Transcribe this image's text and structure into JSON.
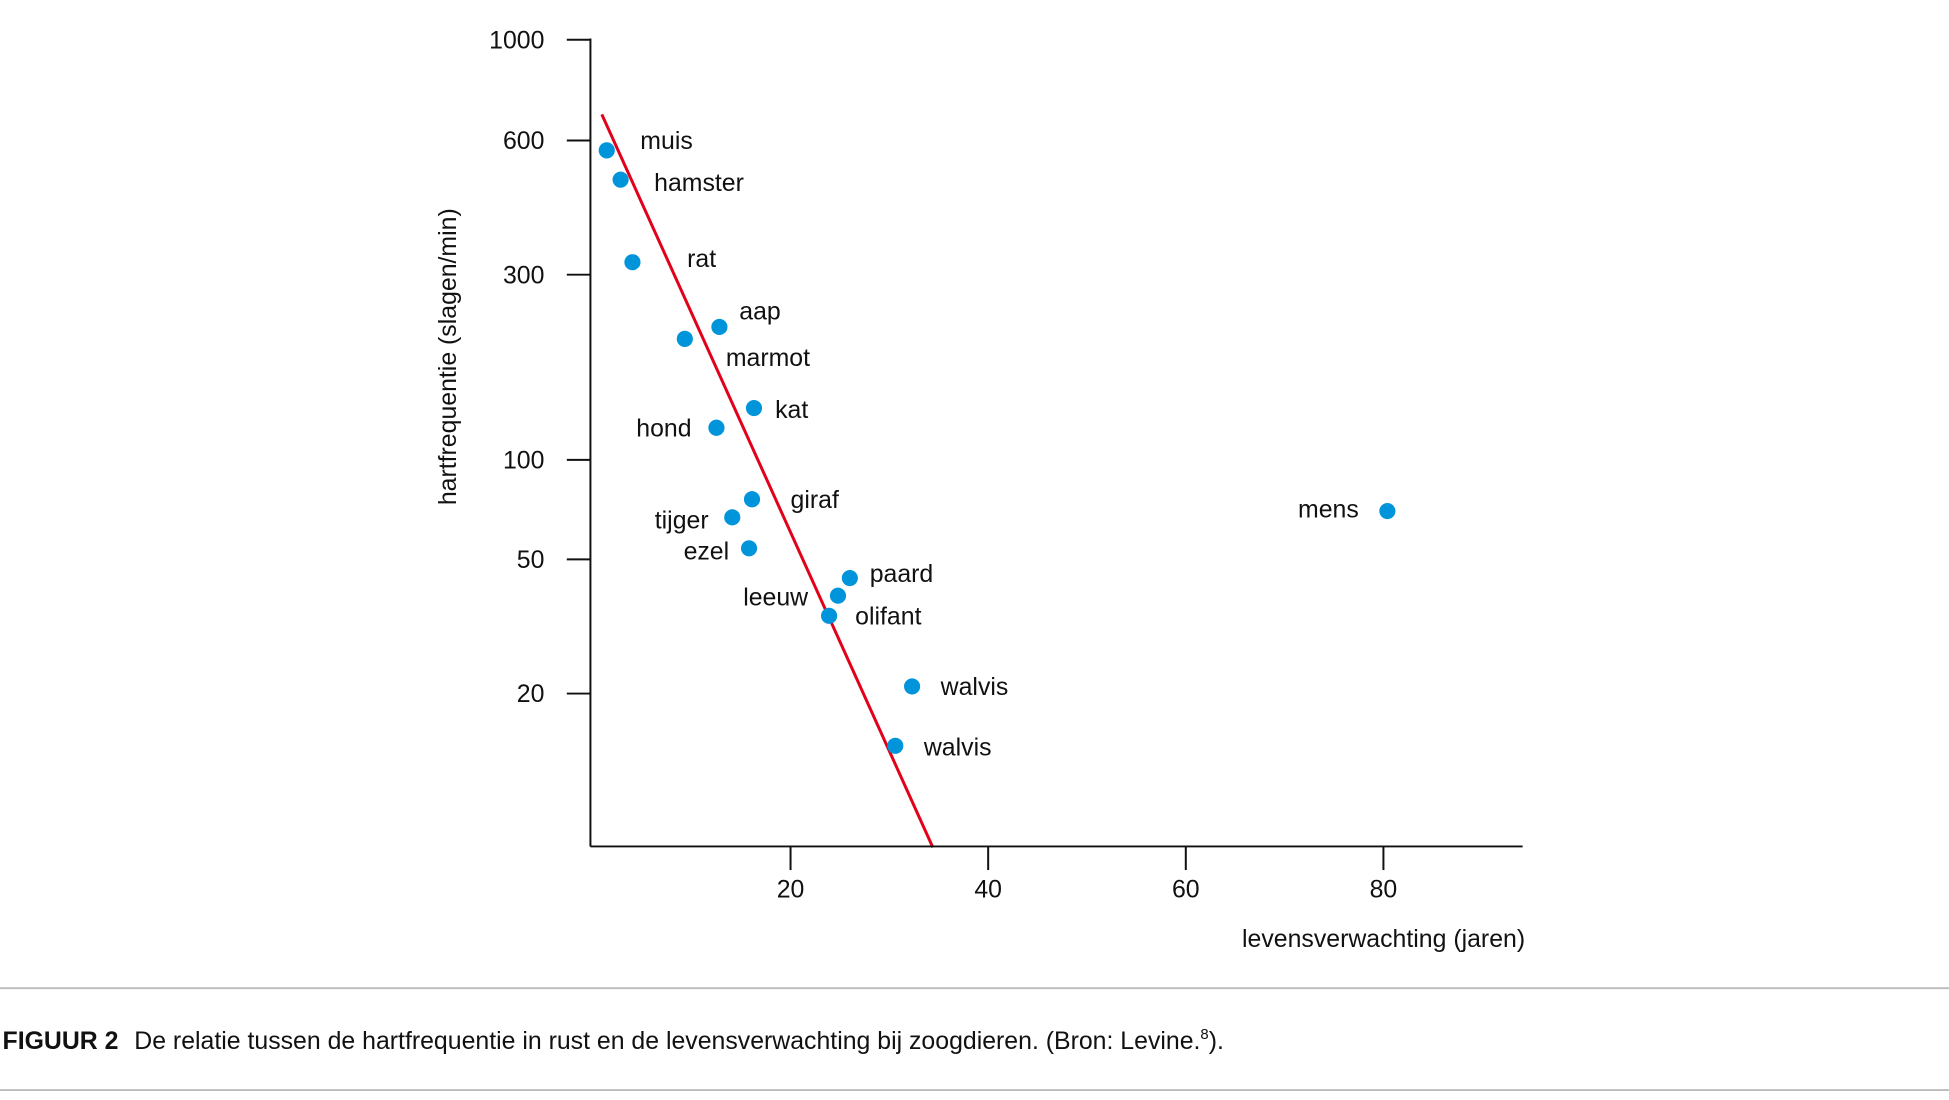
{
  "chart_data": {
    "type": "scatter",
    "xlabel": "levensverwachting (jaren)",
    "ylabel": "hartfrequentie (slagen/min)",
    "x_ticks": [
      20,
      40,
      60,
      80
    ],
    "y_ticks": [
      1000,
      600,
      300,
      100,
      50,
      20
    ],
    "y_scale": "non-uniform (log-like)",
    "xlim": [
      0,
      93
    ],
    "grid": false,
    "colors": {
      "points": "#0095db",
      "trendline": "#e2001a"
    },
    "points": [
      {
        "label": "muis",
        "x": 1.4,
        "y": 570
      },
      {
        "label": "hamster",
        "x": 2.8,
        "y": 490
      },
      {
        "label": "rat",
        "x": 4,
        "y": 320
      },
      {
        "label": "aap",
        "x": 12.8,
        "y": 220
      },
      {
        "label": "marmot",
        "x": 9.3,
        "y": 205
      },
      {
        "label": "kat",
        "x": 16.3,
        "y": 136
      },
      {
        "label": "hond",
        "x": 12.5,
        "y": 121
      },
      {
        "label": "giraf",
        "x": 16.1,
        "y": 76
      },
      {
        "label": "tijger",
        "x": 14.1,
        "y": 67
      },
      {
        "label": "ezel",
        "x": 15.8,
        "y": 54
      },
      {
        "label": "paard",
        "x": 26,
        "y": 44
      },
      {
        "label": "leeuw",
        "x": 24.8,
        "y": 39
      },
      {
        "label": "olifant",
        "x": 23.9,
        "y": 34
      },
      {
        "label": "walvis",
        "x": 32.3,
        "y": 21
      },
      {
        "label": "walvis",
        "x": 30.6,
        "y": 14
      },
      {
        "label": "mens",
        "x": 80.4,
        "y": 70
      }
    ],
    "trendline": [
      {
        "x": 0.9,
        "y": 685
      },
      {
        "x": 34.4,
        "y": 7
      }
    ]
  },
  "caption": {
    "figure_label": "FIGUUR 2",
    "text": "De relatie tussen de hartfrequentie in rust en de levensverwachting bij zoogdieren. (Bron: Levine.",
    "footnote": "8",
    "end": ")."
  }
}
